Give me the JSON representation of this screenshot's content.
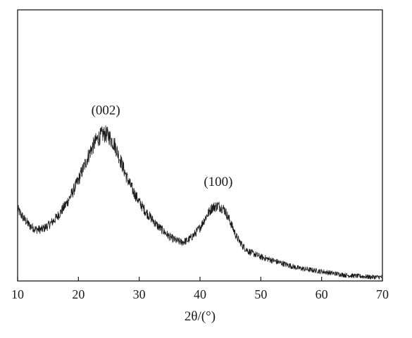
{
  "chart_data": {
    "type": "line",
    "title": "",
    "xlabel": "2θ/(°)",
    "ylabel": "",
    "xlim": [
      10,
      70
    ],
    "ylim": [
      0,
      100
    ],
    "x_ticks": [
      10,
      20,
      30,
      40,
      50,
      60,
      70
    ],
    "x_tick_labels": [
      "10",
      "20",
      "30",
      "40",
      "50",
      "60",
      "70"
    ],
    "y_ticks_shown": false,
    "grid": false,
    "legend": "none",
    "series": [
      {
        "color": "#1a1a1a",
        "x": [
          10,
          11,
          12,
          13,
          14,
          15,
          16,
          17,
          18,
          19,
          20,
          21,
          22,
          23,
          24,
          24.5,
          25,
          26,
          27,
          28,
          29,
          30,
          31,
          32,
          33,
          34,
          35,
          36,
          37,
          38,
          39,
          40,
          41,
          42,
          43,
          44,
          45,
          46,
          47,
          48,
          50,
          52,
          54,
          56,
          58,
          60,
          62,
          64,
          66,
          68,
          70
        ],
        "y": [
          38,
          33,
          29,
          27,
          27,
          29,
          32,
          36,
          41,
          47,
          54,
          62,
          70,
          76,
          79,
          79,
          78,
          73,
          64,
          55,
          48,
          42,
          37,
          33,
          29,
          26,
          23,
          21,
          20,
          21,
          24,
          28,
          34,
          39,
          40,
          38,
          31,
          23,
          18,
          15,
          12,
          10,
          8,
          6,
          5,
          4,
          3,
          2,
          1.5,
          1,
          1
        ]
      }
    ],
    "annotations": [
      {
        "text": "(002)",
        "x": 24.5,
        "y": 79
      },
      {
        "text": "(100)",
        "x": 43,
        "y": 40
      }
    ]
  }
}
